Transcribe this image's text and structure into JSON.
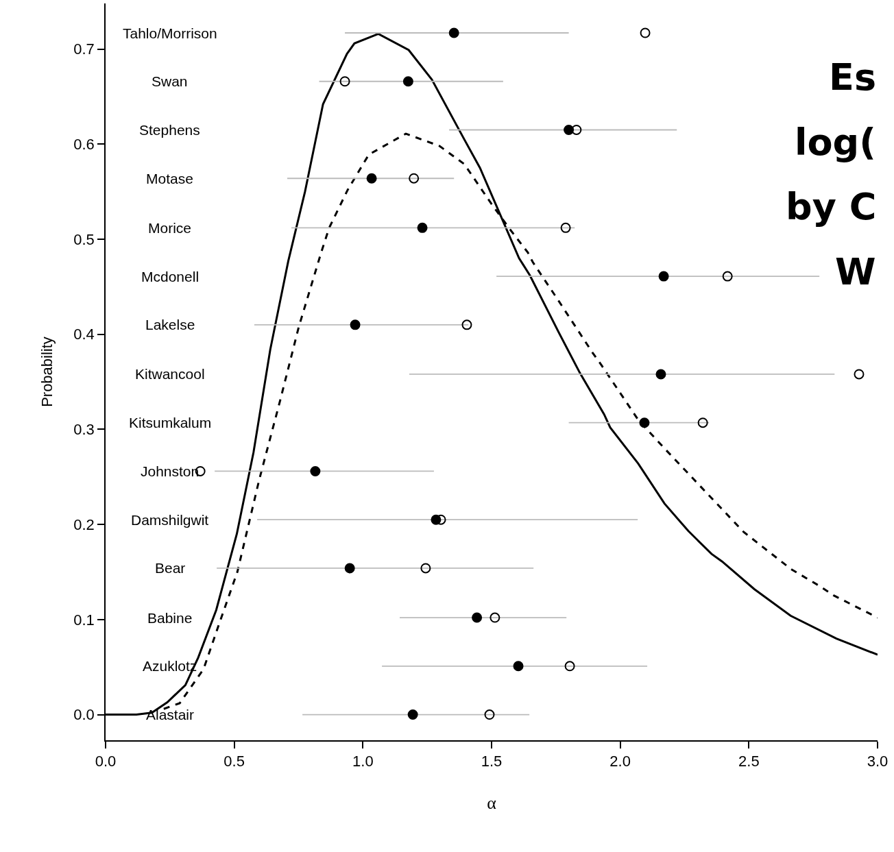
{
  "chart_data": {
    "type": "line",
    "xlabel": "α",
    "ylabel": "Probability",
    "xlim": [
      0,
      3
    ],
    "ylim": [
      -0.027,
      0.748
    ],
    "xticks": [
      {
        "value": 0,
        "label": "0.0"
      },
      {
        "value": 0.5,
        "label": "0.5"
      },
      {
        "value": 1,
        "label": "1.0"
      },
      {
        "value": 1.5,
        "label": "1.5"
      },
      {
        "value": 2,
        "label": "2.0"
      },
      {
        "value": 2.5,
        "label": "2.5"
      },
      {
        "value": 3,
        "label": "3.0"
      }
    ],
    "yticks": [
      {
        "value": 0,
        "label": "0.0"
      },
      0.1,
      0.2,
      0.3,
      0.4,
      0.5,
      0.6,
      0.7
    ],
    "series": [
      {
        "color": "#000000",
        "line_style": "solid",
        "marker": "none",
        "x": [
          0,
          0.12,
          0.18,
          0.24,
          0.31,
          0.36,
          0.43,
          0.51,
          0.575,
          0.64,
          0.71,
          0.775,
          0.845,
          0.938,
          0.967,
          1.06,
          1.178,
          1.268,
          1.394,
          1.455,
          1.495,
          1.607,
          1.649,
          1.761,
          1.844,
          1.937,
          1.961,
          2.07,
          2.172,
          2.265,
          2.355,
          2.396,
          2.521,
          2.662,
          2.84,
          3.0
        ],
        "values": [
          0,
          0,
          0.002,
          0.013,
          0.031,
          0.06,
          0.11,
          0.19,
          0.276,
          0.384,
          0.477,
          0.55,
          0.642,
          0.695,
          0.706,
          0.716,
          0.699,
          0.668,
          0.605,
          0.575,
          0.55,
          0.48,
          0.462,
          0.402,
          0.359,
          0.316,
          0.302,
          0.264,
          0.222,
          0.193,
          0.169,
          0.161,
          0.132,
          0.104,
          0.08,
          0.063
        ]
      },
      {
        "color": "#000000",
        "line_style": "dashed",
        "marker": "none",
        "x": [
          0.226,
          0.288,
          0.381,
          0.442,
          0.512,
          0.597,
          0.679,
          0.751,
          0.839,
          0.869,
          0.941,
          1.023,
          1.167,
          1.298,
          1.394,
          1.5,
          1.567,
          1.641,
          1.66,
          1.761,
          1.894,
          1.926,
          2.07,
          2.172,
          2.326,
          2.48,
          2.664,
          2.776,
          2.832,
          3.0
        ],
        "values": [
          0.006,
          0.012,
          0.048,
          0.096,
          0.15,
          0.247,
          0.331,
          0.408,
          0.487,
          0.512,
          0.552,
          0.589,
          0.611,
          0.598,
          0.579,
          0.537,
          0.512,
          0.486,
          0.476,
          0.435,
          0.38,
          0.368,
          0.31,
          0.28,
          0.236,
          0.192,
          0.153,
          0.135,
          0.125,
          0.102
        ]
      },
      {
        "type": "scatter",
        "color": "#000000",
        "marker": "circle",
        "x": [
          1.354,
          1.176,
          1.8,
          1.034,
          1.231,
          2.169,
          0.97,
          2.158,
          2.094,
          0.815,
          1.284,
          0.949,
          1.443,
          1.604,
          1.194
        ],
        "values": [
          0.717,
          0.666,
          0.615,
          0.564,
          0.512,
          0.461,
          0.41,
          0.358,
          0.307,
          0.256,
          0.205,
          0.154,
          0.102,
          0.051,
          0
        ],
        "xerrors": [
          [
            0.93,
            1.8
          ],
          [
            0.83,
            1.545
          ],
          [
            1.335,
            2.22
          ],
          [
            0.706,
            1.354
          ],
          [
            0.722,
            1.823
          ],
          [
            1.519,
            2.774
          ],
          [
            0.578,
            1.41
          ],
          [
            1.18,
            2.833
          ],
          [
            1.8,
            2.345
          ],
          [
            0.424,
            1.276
          ],
          [
            0.589,
            2.068
          ],
          [
            0.432,
            1.663
          ],
          [
            1.143,
            1.791
          ],
          [
            1.074,
            2.105
          ],
          [
            0.765,
            1.647
          ]
        ]
      },
      {
        "type": "scatter",
        "color": "#000000",
        "marker": "open circle",
        "x": [
          2.097,
          0.93,
          1.83,
          1.198,
          1.788,
          2.417,
          1.404,
          2.928,
          2.321,
          0.368,
          1.303,
          1.244,
          1.513,
          1.804,
          1.492
        ],
        "values": [
          0.717,
          0.666,
          0.615,
          0.564,
          0.512,
          0.461,
          0.41,
          0.358,
          0.307,
          0.256,
          0.205,
          0.154,
          0.102,
          0.051,
          0
        ]
      }
    ],
    "annotations": [
      "Tahlo/Morrison",
      "Swan",
      "Stephens",
      "Motase",
      "Morice",
      "Mcdonell",
      "Lakelse",
      "Kitwancool",
      "Kitsumkalum",
      "Johnston",
      "Damshilgwit",
      "Bear",
      "Babine",
      "Azuklotz",
      "Alastair",
      "Es",
      "log(",
      "by C",
      "W"
    ]
  }
}
